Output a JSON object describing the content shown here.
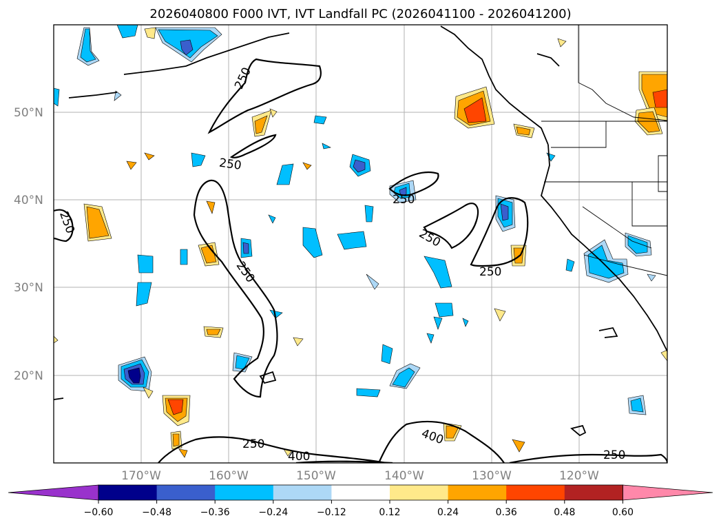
{
  "title": "2026040800 F000 IVT, IVT Landfall PC (2026041100 - 2026041200)",
  "latitude_labels": [
    "50°N",
    "40°N",
    "30°N",
    "20°N"
  ],
  "longitude_labels": [
    "170°W",
    "160°W",
    "150°W",
    "140°W",
    "130°W",
    "120°W"
  ],
  "ivt_contour_labels": [
    "250",
    "250",
    "250",
    "250",
    "250",
    "250",
    "250",
    "400",
    "400",
    "250"
  ],
  "colorbar": {
    "ticks": [
      "−0.60",
      "−0.48",
      "−0.36",
      "−0.24",
      "−0.12",
      "0.12",
      "0.24",
      "0.36",
      "0.48",
      "0.60"
    ],
    "colors": [
      "#9932cc",
      "#00008b",
      "#3a5fcd",
      "#00bfff",
      "#add8f6",
      "#ffffff",
      "#ffe98a",
      "#ffa500",
      "#ff4500",
      "#b22222",
      "#ff88aa"
    ]
  },
  "chart_data": {
    "type": "map",
    "title": "2026040800 F000 IVT, IVT Landfall PC (2026041100 - 2026041200)",
    "lon_range": [
      -180,
      -110
    ],
    "lat_range": [
      10,
      60
    ],
    "grid": true,
    "ivt_contour_levels": [
      250,
      400
    ],
    "colorbar_levels": [
      -0.6,
      -0.48,
      -0.36,
      -0.24,
      -0.12,
      0.12,
      0.24,
      0.36,
      0.48,
      0.6
    ],
    "colorbar_extend": "both"
  }
}
